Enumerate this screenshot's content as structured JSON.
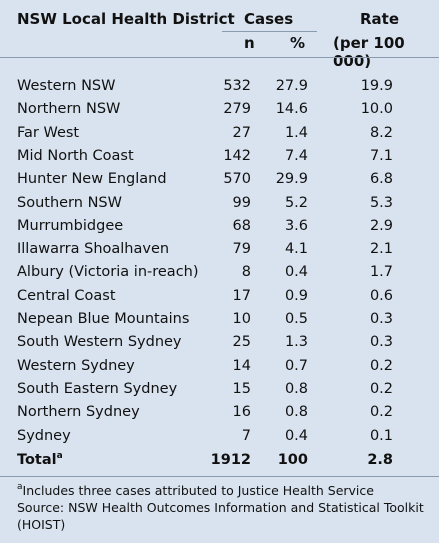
{
  "headers": {
    "district": "NSW Local Health District",
    "cases": "Cases",
    "rate": "Rate",
    "n": "n",
    "pct": "%",
    "rate_unit": "(per 100 000)"
  },
  "rows": [
    {
      "name": "Western NSW",
      "n": "532",
      "pct": "27.9",
      "rate": "19.9"
    },
    {
      "name": "Northern NSW",
      "n": "279",
      "pct": "14.6",
      "rate": "10.0"
    },
    {
      "name": "Far West",
      "n": "27",
      "pct": "1.4",
      "rate": "8.2"
    },
    {
      "name": "Mid North Coast",
      "n": "142",
      "pct": "7.4",
      "rate": "7.1"
    },
    {
      "name": "Hunter New England",
      "n": "570",
      "pct": "29.9",
      "rate": "6.8"
    },
    {
      "name": "Southern NSW",
      "n": "99",
      "pct": "5.2",
      "rate": "5.3"
    },
    {
      "name": "Murrumbidgee",
      "n": "68",
      "pct": "3.6",
      "rate": "2.9"
    },
    {
      "name": "Illawarra Shoalhaven",
      "n": "79",
      "pct": "4.1",
      "rate": "2.1"
    },
    {
      "name": "Albury (Victoria in-reach)",
      "n": "8",
      "pct": "0.4",
      "rate": "1.7"
    },
    {
      "name": "Central Coast",
      "n": "17",
      "pct": "0.9",
      "rate": "0.6"
    },
    {
      "name": "Nepean Blue Mountains",
      "n": "10",
      "pct": "0.5",
      "rate": "0.3"
    },
    {
      "name": "South Western Sydney",
      "n": "25",
      "pct": "1.3",
      "rate": "0.3"
    },
    {
      "name": "Western Sydney",
      "n": "14",
      "pct": "0.7",
      "rate": "0.2"
    },
    {
      "name": "South Eastern Sydney",
      "n": "15",
      "pct": "0.8",
      "rate": "0.2"
    },
    {
      "name": "Northern Sydney",
      "n": "16",
      "pct": "0.8",
      "rate": "0.2"
    },
    {
      "name": "Sydney",
      "n": "7",
      "pct": "0.4",
      "rate": "0.1"
    }
  ],
  "total": {
    "label": "Total",
    "marker": "a",
    "n": "1912",
    "pct": "100",
    "rate": "2.8"
  },
  "footnote": {
    "marker": "a",
    "note": "Includes three cases attributed to Justice Health Service",
    "source_line1": "Source: NSW Health Outcomes Information and Statistical Toolkit",
    "source_line2": "(HOIST)"
  }
}
